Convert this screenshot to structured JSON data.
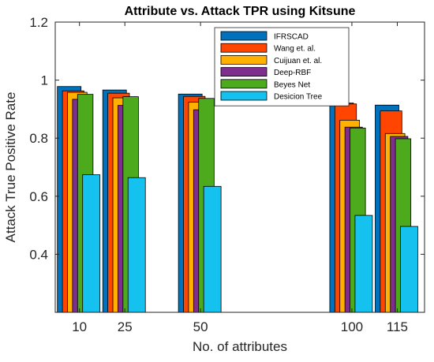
{
  "chart_data": {
    "type": "bar",
    "title": "Attribute vs. Attack TPR using Kitsune",
    "xlabel": "No. of attributes",
    "ylabel": "Attack True Positive Rate",
    "ylim": [
      0.2,
      1.2
    ],
    "yticks": [
      "0.4",
      "0.6",
      "0.8",
      "1",
      "1.2"
    ],
    "categories": [
      "10",
      "25",
      "50",
      "100",
      "115"
    ],
    "x": [
      10,
      25,
      50,
      100,
      115
    ],
    "xlim": [
      2,
      124
    ],
    "grid": false,
    "legend_position": "top-right",
    "series": [
      {
        "name": "IFRSCAD",
        "color": "#0072BD",
        "values": [
          0.978,
          0.966,
          0.952,
          0.921,
          0.914
        ]
      },
      {
        "name": "Wang et. al.",
        "color": "#FF4500",
        "values": [
          0.963,
          0.955,
          0.944,
          0.918,
          0.894
        ]
      },
      {
        "name": "Cuijuan et. al.",
        "color": "#FFB000",
        "values": [
          0.958,
          0.939,
          0.924,
          0.862,
          0.816
        ]
      },
      {
        "name": "Deep-RBF",
        "color": "#7E2F8E",
        "values": [
          0.934,
          0.913,
          0.898,
          0.838,
          0.806
        ]
      },
      {
        "name": "Beyes Net",
        "color": "#4DAA1C",
        "values": [
          0.951,
          0.943,
          0.937,
          0.835,
          0.798
        ]
      },
      {
        "name": "Desicion Tree",
        "color": "#15C1EE",
        "values": [
          0.674,
          0.664,
          0.634,
          0.534,
          0.496
        ]
      }
    ]
  }
}
